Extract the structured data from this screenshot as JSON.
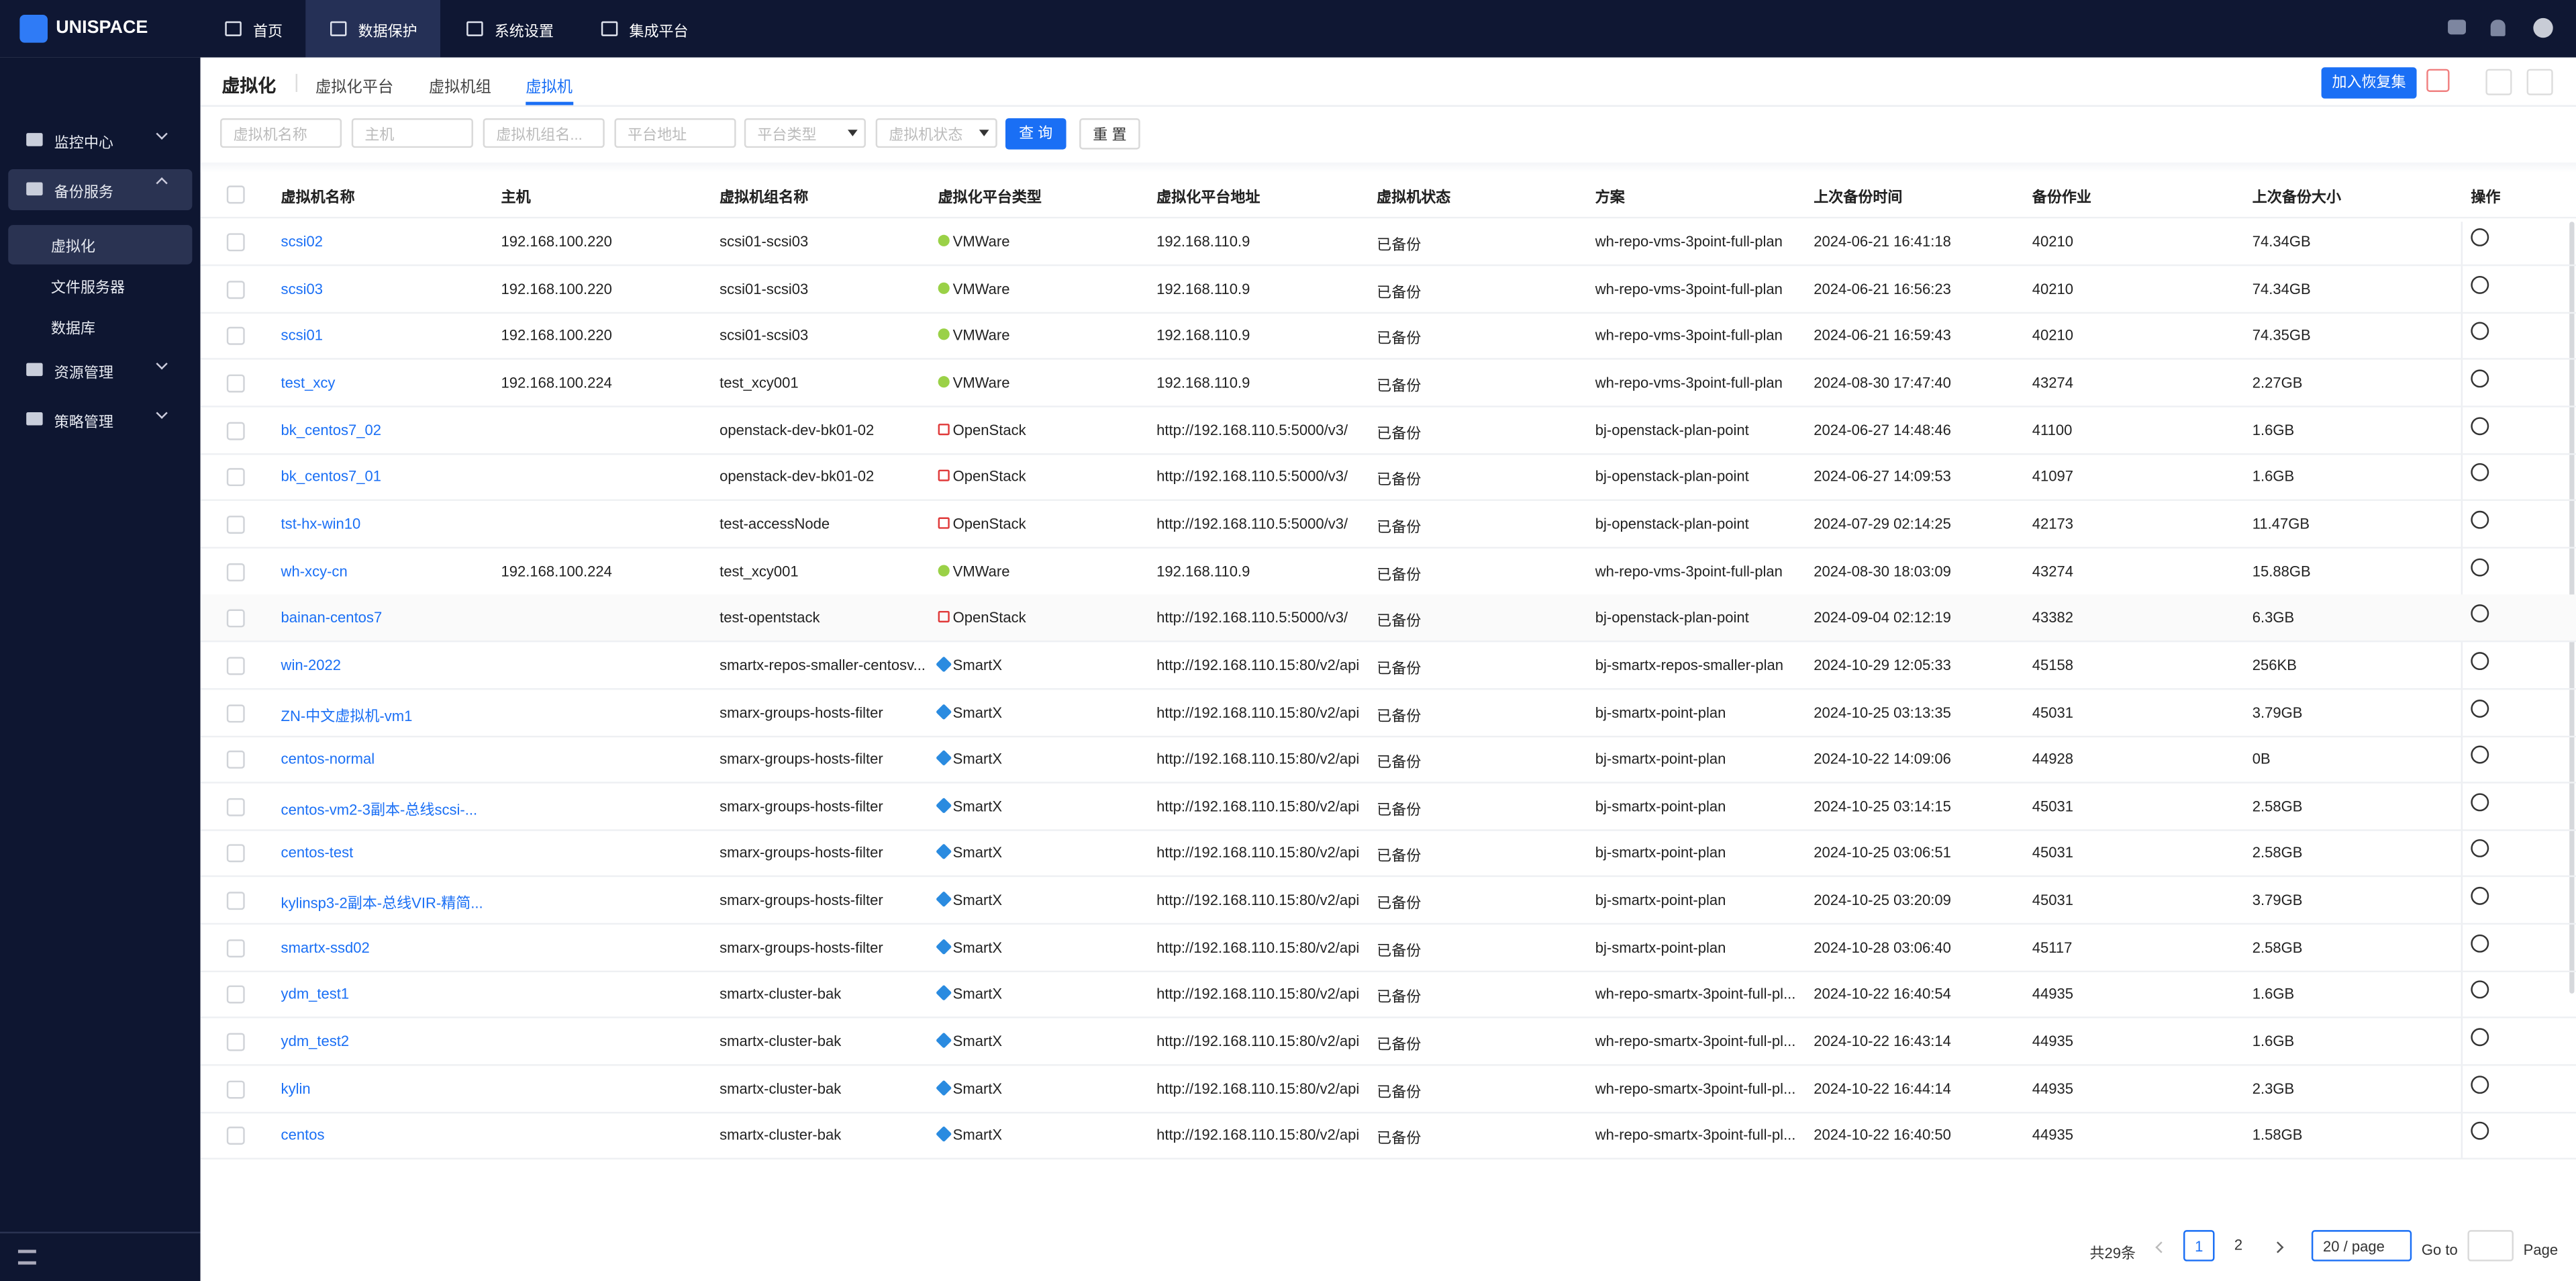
{
  "header": {
    "logo": "UNISPACE",
    "nav": [
      "首页",
      "数据保护",
      "系统设置",
      "集成平台"
    ]
  },
  "sidebar": {
    "groups": [
      {
        "label": "监控中心"
      },
      {
        "label": "备份服务",
        "children": [
          "虚拟化",
          "文件服务器",
          "数据库"
        ]
      },
      {
        "label": "资源管理"
      },
      {
        "label": "策略管理"
      }
    ]
  },
  "page": {
    "title": "虚拟化",
    "tabs": [
      "虚拟化平台",
      "虚拟机组",
      "虚拟机"
    ],
    "action": "加入恢复集"
  },
  "filters": {
    "placeholders": [
      "虚拟机名称",
      "主机",
      "虚拟机组名...",
      "平台地址",
      "平台类型",
      "虚拟机状态"
    ],
    "search": "查 询",
    "reset": "重 置"
  },
  "table": {
    "columns": [
      "虚拟机名称",
      "主机",
      "虚拟机组名称",
      "虚拟化平台类型",
      "虚拟化平台地址",
      "虚拟机状态",
      "方案",
      "上次备份时间",
      "备份作业",
      "上次备份大小",
      "操作"
    ],
    "rows": [
      [
        "scsi02",
        "192.168.100.220",
        "scsi01-scsi03",
        "VMWare",
        "192.168.110.9",
        "已备份",
        "wh-repo-vms-3point-full-plan",
        "2024-06-21 16:41:18",
        "40210",
        "74.34GB"
      ],
      [
        "scsi03",
        "192.168.100.220",
        "scsi01-scsi03",
        "VMWare",
        "192.168.110.9",
        "已备份",
        "wh-repo-vms-3point-full-plan",
        "2024-06-21 16:56:23",
        "40210",
        "74.34GB"
      ],
      [
        "scsi01",
        "192.168.100.220",
        "scsi01-scsi03",
        "VMWare",
        "192.168.110.9",
        "已备份",
        "wh-repo-vms-3point-full-plan",
        "2024-06-21 16:59:43",
        "40210",
        "74.35GB"
      ],
      [
        "test_xcy",
        "192.168.100.224",
        "test_xcy001",
        "VMWare",
        "192.168.110.9",
        "已备份",
        "wh-repo-vms-3point-full-plan",
        "2024-08-30 17:47:40",
        "43274",
        "2.27GB"
      ],
      [
        "bk_centos7_02",
        null,
        "openstack-dev-bk01-02",
        "OpenStack",
        "http://192.168.110.5:5000/v3/",
        "已备份",
        "bj-openstack-plan-point",
        "2024-06-27 14:48:46",
        "41100",
        "1.6GB"
      ],
      [
        "bk_centos7_01",
        null,
        "openstack-dev-bk01-02",
        "OpenStack",
        "http://192.168.110.5:5000/v3/",
        "已备份",
        "bj-openstack-plan-point",
        "2024-06-27 14:09:53",
        "41097",
        "1.6GB"
      ],
      [
        "tst-hx-win10",
        null,
        "test-accessNode",
        "OpenStack",
        "http://192.168.110.5:5000/v3/",
        "已备份",
        "bj-openstack-plan-point",
        "2024-07-29 02:14:25",
        "42173",
        "11.47GB"
      ],
      [
        "wh-xcy-cn",
        "192.168.100.224",
        "test_xcy001",
        "VMWare",
        "192.168.110.9",
        "已备份",
        "wh-repo-vms-3point-full-plan",
        "2024-08-30 18:03:09",
        "43274",
        "15.88GB"
      ],
      [
        "bainan-centos7",
        null,
        "test-opentstack",
        "OpenStack",
        "http://192.168.110.5:5000/v3/",
        "已备份",
        "bj-openstack-plan-point",
        "2024-09-04 02:12:19",
        "43382",
        "6.3GB"
      ],
      [
        "win-2022",
        null,
        "smartx-repos-smaller-centosv...",
        "SmartX",
        "http://192.168.110.15:80/v2/api",
        "已备份",
        "bj-smartx-repos-smaller-plan",
        "2024-10-29 12:05:33",
        "45158",
        "256KB"
      ],
      [
        "ZN-中文虚拟机-vm1",
        null,
        "smarx-groups-hosts-filter",
        "SmartX",
        "http://192.168.110.15:80/v2/api",
        "已备份",
        "bj-smartx-point-plan",
        "2024-10-25 03:13:35",
        "45031",
        "3.79GB"
      ],
      [
        "centos-normal",
        null,
        "smarx-groups-hosts-filter",
        "SmartX",
        "http://192.168.110.15:80/v2/api",
        "已备份",
        "bj-smartx-point-plan",
        "2024-10-22 14:09:06",
        "44928",
        "0B"
      ],
      [
        "centos-vm2-3副本-总线scsi-...",
        null,
        "smarx-groups-hosts-filter",
        "SmartX",
        "http://192.168.110.15:80/v2/api",
        "已备份",
        "bj-smartx-point-plan",
        "2024-10-25 03:14:15",
        "45031",
        "2.58GB"
      ],
      [
        "centos-test",
        null,
        "smarx-groups-hosts-filter",
        "SmartX",
        "http://192.168.110.15:80/v2/api",
        "已备份",
        "bj-smartx-point-plan",
        "2024-10-25 03:06:51",
        "45031",
        "2.58GB"
      ],
      [
        "kylinsp3-2副本-总线VIR-精简...",
        null,
        "smarx-groups-hosts-filter",
        "SmartX",
        "http://192.168.110.15:80/v2/api",
        "已备份",
        "bj-smartx-point-plan",
        "2024-10-25 03:20:09",
        "45031",
        "3.79GB"
      ],
      [
        "smartx-ssd02",
        null,
        "smarx-groups-hosts-filter",
        "SmartX",
        "http://192.168.110.15:80/v2/api",
        "已备份",
        "bj-smartx-point-plan",
        "2024-10-28 03:06:40",
        "45117",
        "2.58GB"
      ],
      [
        "ydm_test1",
        null,
        "smartx-cluster-bak",
        "SmartX",
        "http://192.168.110.15:80/v2/api",
        "已备份",
        "wh-repo-smartx-3point-full-pl...",
        "2024-10-22 16:40:54",
        "44935",
        "1.6GB"
      ],
      [
        "ydm_test2",
        null,
        "smartx-cluster-bak",
        "SmartX",
        "http://192.168.110.15:80/v2/api",
        "已备份",
        "wh-repo-smartx-3point-full-pl...",
        "2024-10-22 16:43:14",
        "44935",
        "1.6GB"
      ],
      [
        "kylin",
        null,
        "smartx-cluster-bak",
        "SmartX",
        "http://192.168.110.15:80/v2/api",
        "已备份",
        "wh-repo-smartx-3point-full-pl...",
        "2024-10-22 16:44:14",
        "44935",
        "2.3GB"
      ],
      [
        "centos",
        null,
        "smartx-cluster-bak",
        "SmartX",
        "http://192.168.110.15:80/v2/api",
        "已备份",
        "wh-repo-smartx-3point-full-pl...",
        "2024-10-22 16:40:50",
        "44935",
        "1.58GB"
      ]
    ]
  },
  "pagination": {
    "total": "共29条",
    "pages": [
      "1",
      "2"
    ],
    "page_size": "20 / page",
    "goto": "Go to",
    "page_suffix": "Page"
  }
}
